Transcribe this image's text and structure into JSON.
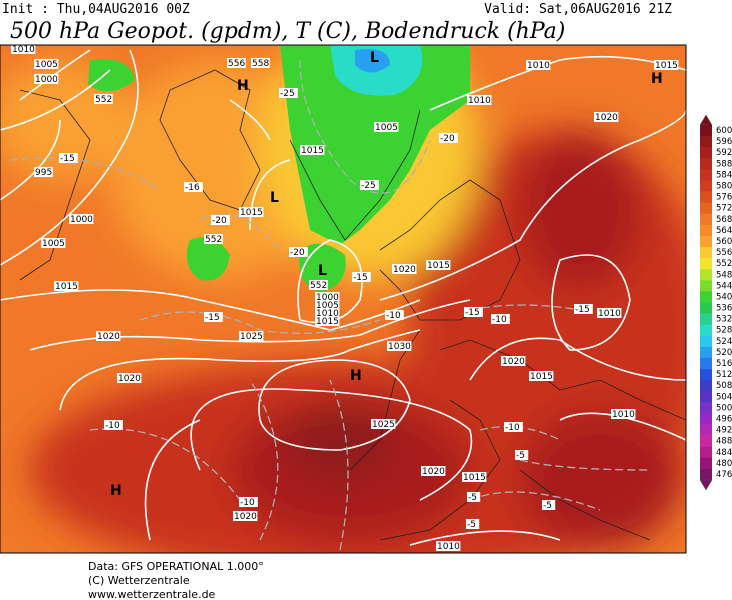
{
  "header": {
    "init": "Init : Thu,04AUG2016 00Z",
    "valid": "Valid: Sat,06AUG2016 21Z",
    "title": "500 hPa Geopot. (gpdm), T (C), Bodendruck (hPa)"
  },
  "footer": [
    "Data: GFS OPERATIONAL 1.000°",
    "(C) Wetterzentrale",
    "www.wetterzentrale.de"
  ],
  "colorbar": {
    "levels": [
      600,
      596,
      592,
      588,
      584,
      580,
      576,
      572,
      568,
      564,
      560,
      556,
      552,
      548,
      544,
      540,
      536,
      532,
      528,
      524,
      520,
      516,
      512,
      508,
      504,
      500,
      496,
      492,
      488,
      484,
      480,
      476
    ],
    "colors": [
      "#7a0f1e",
      "#8e1a1a",
      "#a81e1e",
      "#b82a1e",
      "#c8321e",
      "#d23c1e",
      "#dc501e",
      "#e6641e",
      "#f07828",
      "#f58c28",
      "#faa032",
      "#fac832",
      "#f0e628",
      "#b4e628",
      "#78dc28",
      "#3cd232",
      "#28c850",
      "#28d28c",
      "#28dcc8",
      "#28c8f0",
      "#28a0f0",
      "#2878f0",
      "#2850dc",
      "#3c3cc8",
      "#5a32c8",
      "#7832c8",
      "#9628c8",
      "#b428b4",
      "#c828a0",
      "#b41e8c",
      "#961478",
      "#781464"
    ]
  },
  "map_labels": [
    "1010",
    "1005",
    "1000",
    "995",
    "1000",
    "1005",
    "1015",
    "1020",
    "1020",
    "1025",
    "1030",
    "1025",
    "1020",
    "1015",
    "1020",
    "1010",
    "1015",
    "1015",
    "1010",
    "1005",
    "1010",
    "1015",
    "1020",
    "1020",
    "1015",
    "1020",
    "1015",
    "1010",
    "1010",
    "1000",
    "1005",
    "1010",
    "1015",
    "H",
    "L",
    "L",
    "L",
    "H",
    "H",
    "H",
    "-25",
    "-25",
    "-20",
    "-20",
    "-20",
    "-15",
    "-15",
    "-15",
    "-15",
    "-10",
    "-10",
    "-10",
    "-10",
    "-10",
    "-5",
    "-5",
    "-5",
    "-5",
    "-15",
    "-16",
    "552",
    "552",
    "552",
    "556",
    "558"
  ]
}
